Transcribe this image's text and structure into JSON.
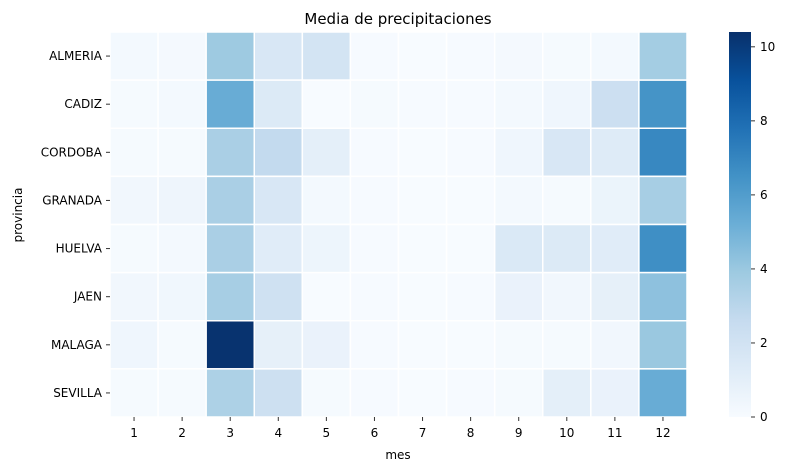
{
  "chart_data": {
    "type": "heatmap",
    "title": "Media de precipitaciones",
    "xlabel": "mes",
    "ylabel": "provincia",
    "x": [
      "1",
      "2",
      "3",
      "4",
      "5",
      "6",
      "7",
      "8",
      "9",
      "10",
      "11",
      "12"
    ],
    "y": [
      "ALMERIA",
      "CADIZ",
      "CORDOBA",
      "GRANADA",
      "HUELVA",
      "JAEN",
      "MALAGA",
      "SEVILLA"
    ],
    "values": [
      [
        0.2,
        0.15,
        3.9,
        1.6,
        1.9,
        0.05,
        0.0,
        0.05,
        0.15,
        0.1,
        0.2,
        3.7
      ],
      [
        0.1,
        0.2,
        5.3,
        1.4,
        0.0,
        0.1,
        0.05,
        0.05,
        0.2,
        0.4,
        2.3,
        6.4
      ],
      [
        0.1,
        0.1,
        3.5,
        2.7,
        1.0,
        0.05,
        0.0,
        0.05,
        0.4,
        1.6,
        1.3,
        6.9
      ],
      [
        0.3,
        0.45,
        3.5,
        1.6,
        0.2,
        0.05,
        0.0,
        0.0,
        0.2,
        0.1,
        0.6,
        3.6
      ],
      [
        0.1,
        0.2,
        3.5,
        1.2,
        0.5,
        0.05,
        0.0,
        0.0,
        1.5,
        1.4,
        1.2,
        6.6
      ],
      [
        0.3,
        0.35,
        3.6,
        2.1,
        0.0,
        0.05,
        0.0,
        0.05,
        0.7,
        0.3,
        0.9,
        4.3
      ],
      [
        0.4,
        0.1,
        10.3,
        0.9,
        0.7,
        0.05,
        0.0,
        0.0,
        0.1,
        0.1,
        0.3,
        4.0
      ],
      [
        0.1,
        0.1,
        3.4,
        2.2,
        0.1,
        0.05,
        0.0,
        0.05,
        0.1,
        1.0,
        0.7,
        5.3
      ]
    ],
    "colorbar": {
      "min": 0,
      "max": 10.4,
      "ticks": [
        "0",
        "2",
        "4",
        "6",
        "8",
        "10"
      ],
      "colormap": "Blues"
    },
    "grid": false
  }
}
